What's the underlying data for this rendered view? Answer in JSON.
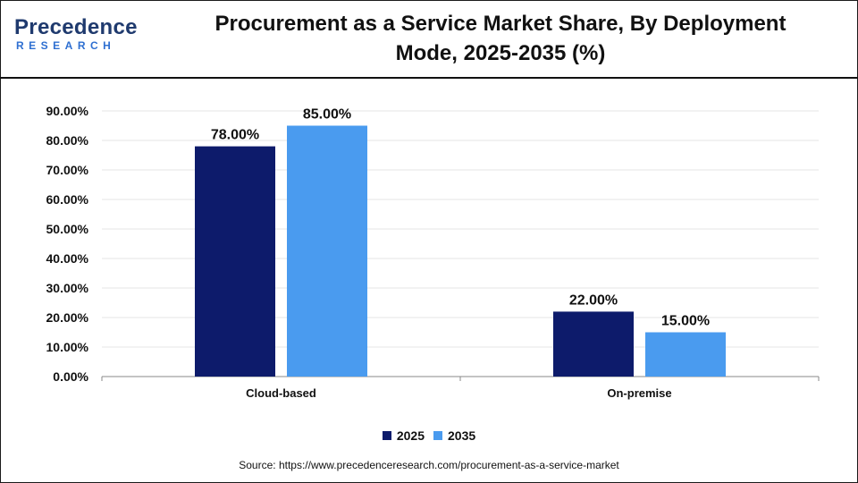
{
  "brand": {
    "logo_top": "Precedence",
    "logo_bottom": "RESEARCH"
  },
  "title_lines": [
    "Procurement as a Service Market Share, By Deployment",
    "Mode, 2025-2035 (%)"
  ],
  "source": "Source: https://www.precedenceresearch.com/procurement-as-a-service-market",
  "chart_data": {
    "type": "bar",
    "title": "Procurement as a Service Market Share, By Deployment Mode, 2025-2035 (%)",
    "categories": [
      "Cloud-based",
      "On-premise"
    ],
    "series": [
      {
        "name": "2025",
        "values": [
          78.0,
          22.0
        ],
        "color": "#0d1b6b"
      },
      {
        "name": "2035",
        "values": [
          85.0,
          15.0
        ],
        "color": "#4a9bef"
      }
    ],
    "data_labels": [
      [
        "78.00%",
        "22.00%"
      ],
      [
        "85.00%",
        "15.00%"
      ]
    ],
    "y_ticks": [
      "0.00%",
      "10.00%",
      "20.00%",
      "30.00%",
      "40.00%",
      "50.00%",
      "60.00%",
      "70.00%",
      "80.00%",
      "90.00%"
    ],
    "ylim": [
      0,
      90
    ],
    "xlabel": "",
    "ylabel": "",
    "grid": true,
    "legend_position": "bottom"
  }
}
